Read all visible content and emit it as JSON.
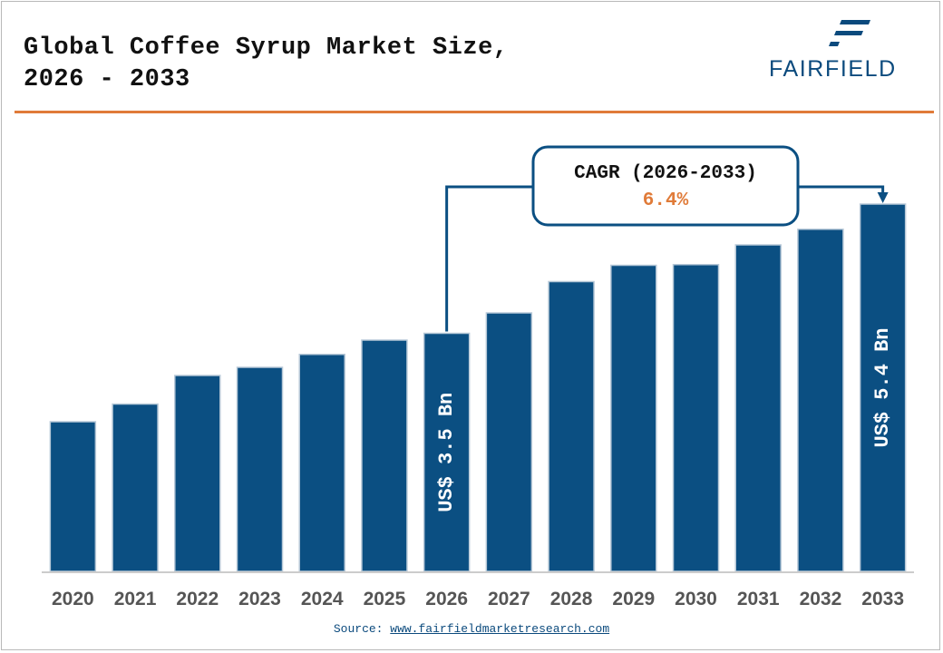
{
  "header": {
    "title_line1": "Global Coffee Syrup Market Size,",
    "title_line2": "2026 - 2033",
    "logo_text": "FAIRFIELD"
  },
  "source": {
    "label": "Source:",
    "url_text": "www.fairfieldmarketresearch.com"
  },
  "callout": {
    "title": "CAGR (2026-2033)",
    "value": "6.4%"
  },
  "colors": {
    "bar": "#0b4f82",
    "accent": "#e07b39",
    "text": "#111111"
  },
  "chart_data": {
    "type": "bar",
    "title": "Global Coffee Syrup Market Size, 2026 - 2033",
    "categories": [
      "2020",
      "2021",
      "2022",
      "2023",
      "2024",
      "2025",
      "2026",
      "2027",
      "2028",
      "2029",
      "2030",
      "2031",
      "2032",
      "2033"
    ],
    "values": [
      2.2,
      2.46,
      2.88,
      3.0,
      3.19,
      3.4,
      3.5,
      3.8,
      4.26,
      4.5,
      4.51,
      4.8,
      5.03,
      5.4
    ],
    "bar_labels": [
      {
        "category": "2026",
        "text": "US$ 3.5 Bn"
      },
      {
        "category": "2033",
        "text": "US$ 5.4 Bn"
      }
    ],
    "ylim": [
      0,
      6.4
    ],
    "grid": false,
    "legend": "none"
  }
}
